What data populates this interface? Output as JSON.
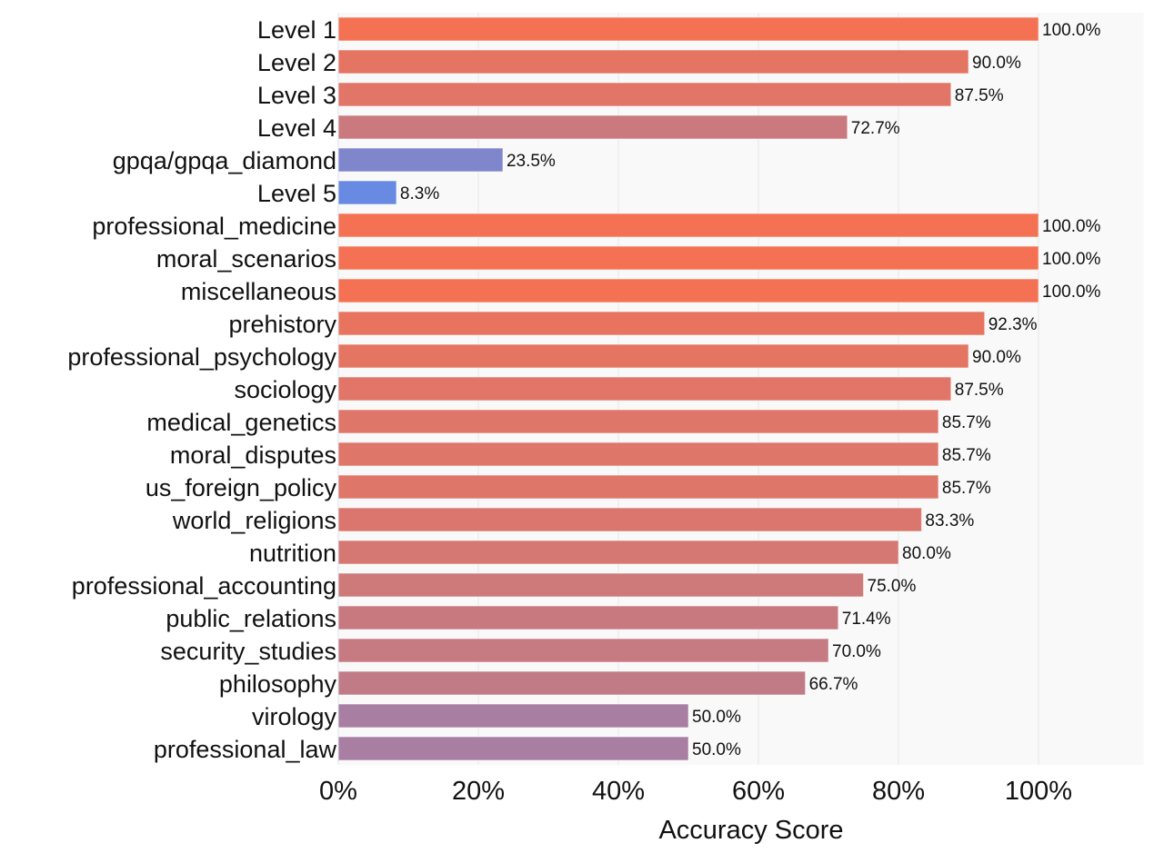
{
  "chart_data": {
    "type": "bar",
    "orientation": "horizontal",
    "title": "",
    "xlabel": "Accuracy Score",
    "ylabel": "",
    "xlim": [
      0,
      115
    ],
    "xticks": [
      0,
      20,
      40,
      60,
      80,
      100
    ],
    "xtick_labels": [
      "0%",
      "20%",
      "40%",
      "60%",
      "80%",
      "100%"
    ],
    "grid": "vertical",
    "background": "#f9f9f9",
    "colorscale": {
      "low": "#5b8cf0",
      "high": "#f47253",
      "range": [
        0,
        100
      ]
    },
    "categories": [
      "Level 1",
      "Level 2",
      "Level 3",
      "Level 4",
      "gpqa/gpqa_diamond",
      "Level 5",
      "professional_medicine",
      "moral_scenarios",
      "miscellaneous",
      "prehistory",
      "professional_psychology",
      "sociology",
      "medical_genetics",
      "moral_disputes",
      "us_foreign_policy",
      "world_religions",
      "nutrition",
      "professional_accounting",
      "public_relations",
      "security_studies",
      "philosophy",
      "virology",
      "professional_law"
    ],
    "values": [
      100.0,
      90.0,
      87.5,
      72.7,
      23.5,
      8.3,
      100.0,
      100.0,
      100.0,
      92.3,
      90.0,
      87.5,
      85.7,
      85.7,
      85.7,
      83.3,
      80.0,
      75.0,
      71.4,
      70.0,
      66.7,
      50.0,
      50.0
    ],
    "value_labels": [
      "100.0%",
      "90.0%",
      "87.5%",
      "72.7%",
      "23.5%",
      "8.3%",
      "100.0%",
      "100.0%",
      "100.0%",
      "92.3%",
      "90.0%",
      "87.5%",
      "85.7%",
      "85.7%",
      "85.7%",
      "83.3%",
      "80.0%",
      "75.0%",
      "71.4%",
      "70.0%",
      "66.7%",
      "50.0%",
      "50.0%"
    ]
  }
}
